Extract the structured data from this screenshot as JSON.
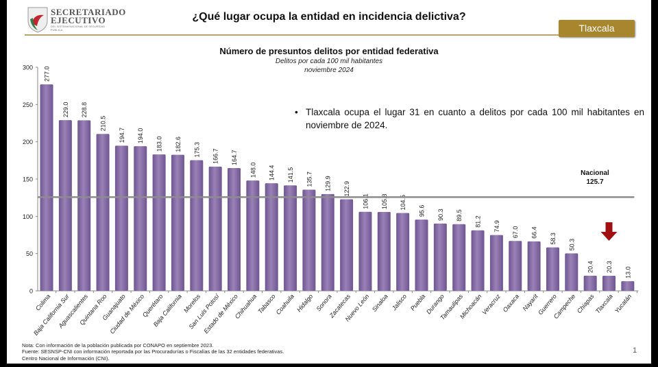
{
  "header": {
    "logo_line1": "SECRETARIADO",
    "logo_line2": "EJECUTIVO",
    "logo_line3": "DEL SISTEMA NACIONAL DE SEGURIDAD PÚBLICA",
    "title": "¿Qué lugar ocupa la entidad en incidencia delictiva?",
    "entity_badge": "Tlaxcala"
  },
  "callout": "Tlaxcala ocupa el lugar 31 en cuanto a delitos por cada 100 mil habitantes en noviembre de 2024.",
  "colors": {
    "bar": "#6e5590",
    "bar_light": "#9a82b8",
    "reference_line": "#8c8c8c",
    "arrow": "#a01010",
    "accent": "#a8862e"
  },
  "chart_data": {
    "type": "bar",
    "title": "Número de presuntos delitos por entidad federativa",
    "subtitle": "Delitos por cada 100 mil habitantes",
    "period": "noviembre 2024",
    "ylim": [
      0,
      300
    ],
    "yticks": [
      0,
      50,
      100,
      150,
      200,
      250,
      300
    ],
    "grid": false,
    "categories": [
      "Colima",
      "Baja California Sur",
      "Aguascalientes",
      "Quintana Roo",
      "Guanajuato",
      "Ciudad de México",
      "Querétaro",
      "Baja California",
      "Morelos",
      "San Luis Potosí",
      "Estado de México",
      "Chihuahua",
      "Tabasco",
      "Coahuila",
      "Hidalgo",
      "Sonora",
      "Zacatecas",
      "Nuevo León",
      "Sinaloa",
      "Jalisco",
      "Puebla",
      "Durango",
      "Tamaulipas",
      "Michoacán",
      "Veracruz",
      "Oaxaca",
      "Nayarit",
      "Guerrero",
      "Campeche",
      "Chiapas",
      "Tlaxcala",
      "Yucatán"
    ],
    "values": [
      277.0,
      229.0,
      228.8,
      210.5,
      194.7,
      194.0,
      183.0,
      182.6,
      175.3,
      166.7,
      164.7,
      148.0,
      144.4,
      141.5,
      135.7,
      129.9,
      122.9,
      106.1,
      105.8,
      104.5,
      95.6,
      90.3,
      89.5,
      81.2,
      74.9,
      67.0,
      66.4,
      58.3,
      50.3,
      20.4,
      20.3,
      13.0
    ],
    "data_labels": [
      "277.0",
      "229.0",
      "228.8",
      "210.5",
      "194.7",
      "194.0",
      "183.0",
      "182.6",
      "175.3",
      "166.7",
      "164.7",
      "148.0",
      "144.4",
      "141.5",
      "135.7",
      "129.9",
      "122.9",
      "106.1",
      "105.8",
      "104.5",
      "95.6",
      "90.3",
      "89.5",
      "81.2",
      "74.9",
      "67.0",
      "66.4",
      "58.3",
      "50.3",
      "20.4",
      "20.3",
      "13.0"
    ],
    "reference_line": {
      "label": "Nacional",
      "value": 125.7,
      "value_label": "125.7"
    },
    "highlight": "Tlaxcala"
  },
  "notes": [
    "Nota: Con información de la población publicada por CONAPO en septiembre 2023.",
    "Fuente: SESNSP-CNI con información reportada por las Procuradurías o Fiscalías de las 32 entidades federativas.",
    "Centro Nacional de Información (CNI)."
  ],
  "page_number": "1"
}
